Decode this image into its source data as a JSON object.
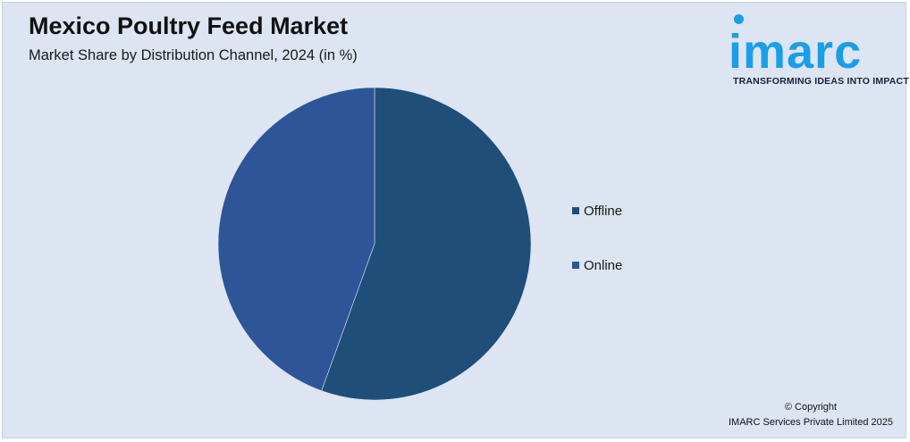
{
  "header": {
    "title": "Mexico Poultry Feed Market",
    "subtitle": "Market Share by Distribution Channel, 2024 (in %)"
  },
  "logo": {
    "wordmark": "imarc",
    "tagline": "TRANSFORMING IDEAS INTO IMPACT",
    "color": "#1b9ee9"
  },
  "footer": {
    "copyright_line1": "© Copyright",
    "copyright_line2": "IMARC Services Private Limited 2025"
  },
  "chart_data": {
    "type": "pie",
    "title": "Mexico Poultry Feed Market",
    "subtitle": "Market Share by Distribution Channel, 2024 (in %)",
    "legend_position": "right",
    "slices": [
      {
        "label": "Offline",
        "value": 55.5,
        "color": "#1f4e79"
      },
      {
        "label": "Online",
        "value": 44.5,
        "color": "#2e5597"
      }
    ]
  }
}
